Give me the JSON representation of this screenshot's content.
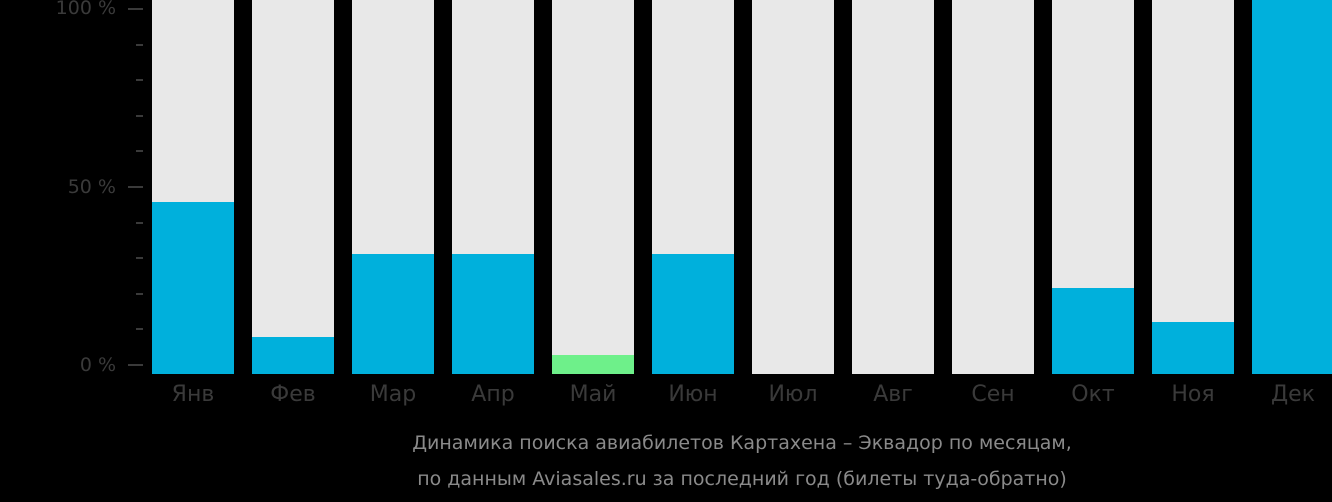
{
  "chart_data": {
    "type": "bar",
    "title": "Динамика поиска авиабилетов Картахена – Эквадор по месяцам, по данным Aviasales.ru за последний год (билеты туда-обратно)",
    "categories": [
      "Янв",
      "Фев",
      "Мар",
      "Апр",
      "Май",
      "Июн",
      "Июл",
      "Авг",
      "Сен",
      "Окт",
      "Ноя",
      "Дек"
    ],
    "values": [
      46,
      10,
      32,
      32,
      5,
      32,
      0,
      0,
      0,
      23,
      14,
      100
    ],
    "highlight_index": 4,
    "xlabel": "",
    "ylabel": "",
    "ylim": [
      0,
      100
    ],
    "yticks": [
      "0 %",
      "50 %",
      "100 %"
    ],
    "grid": false,
    "colors": {
      "bar": "#00b0dc",
      "highlight": "#6ef08a",
      "track": "#e8e8e8",
      "background": "#000000"
    }
  },
  "caption": {
    "line1": "Динамика поиска авиабилетов Картахена – Эквадор по месяцам,",
    "line2": "по данным Aviasales.ru за последний год (билеты туда-обратно)"
  }
}
